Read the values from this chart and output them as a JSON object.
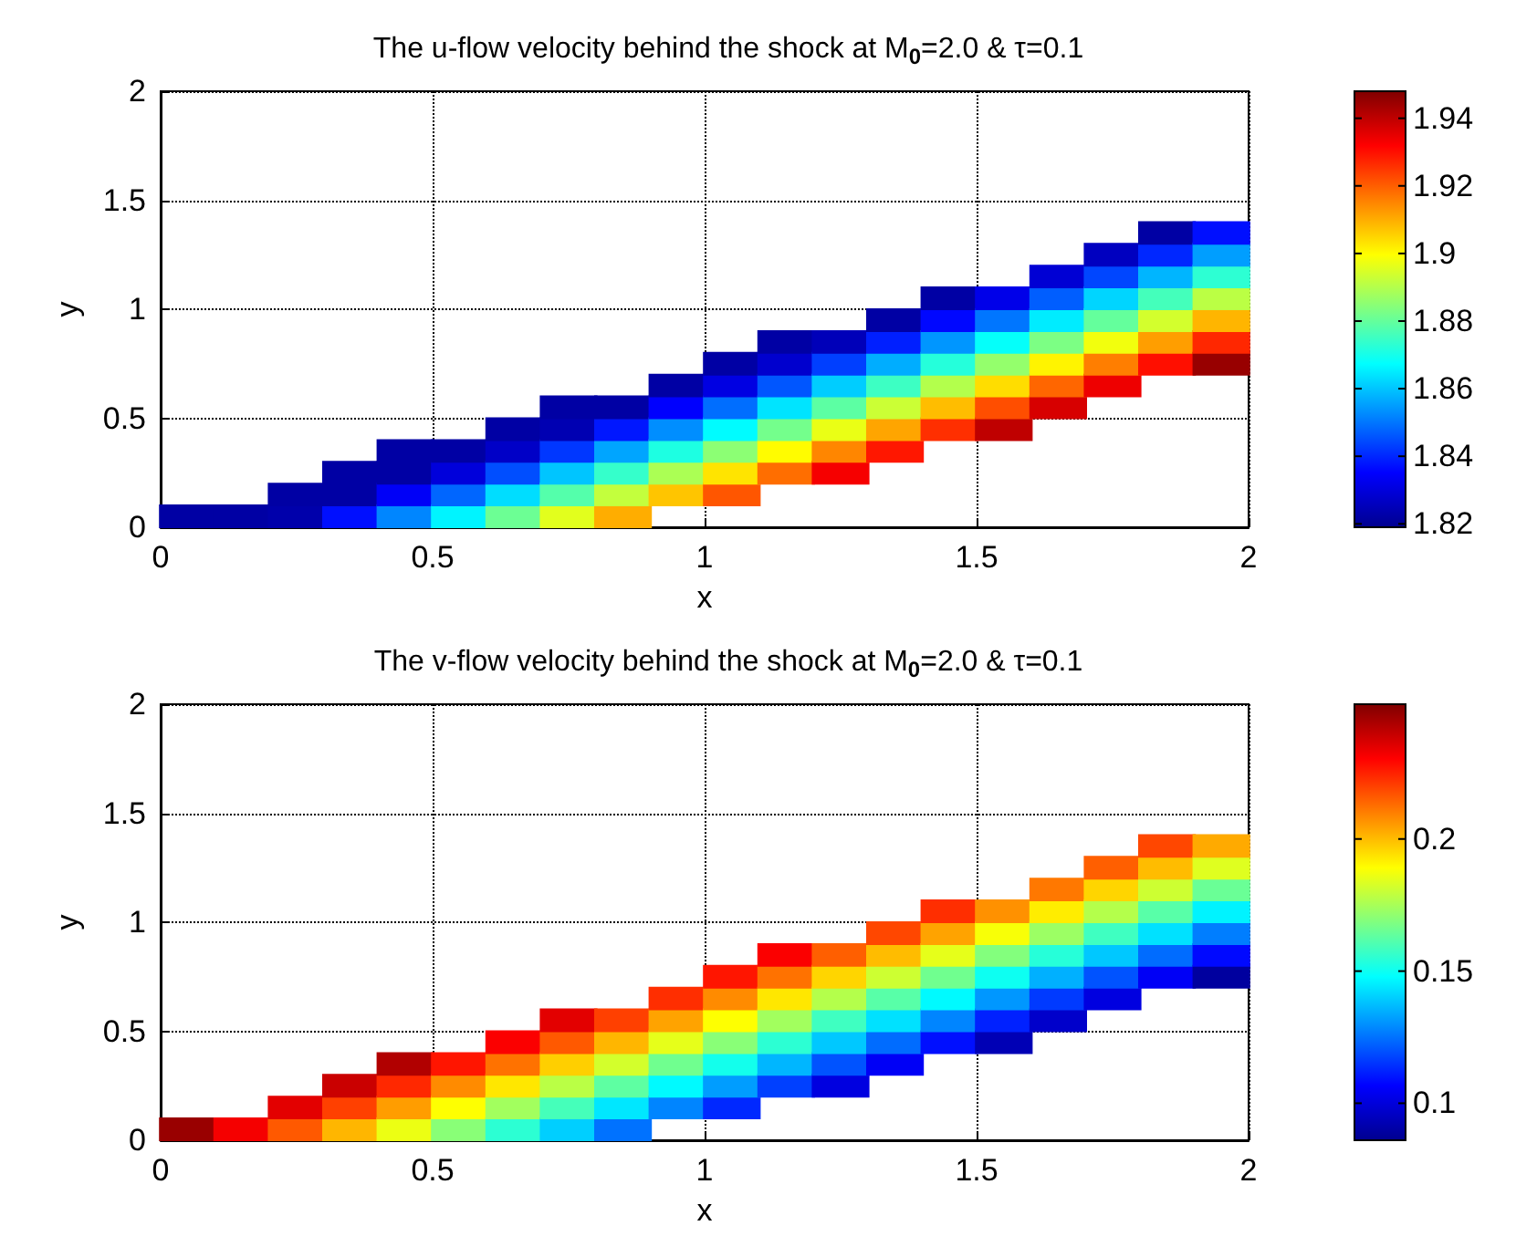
{
  "chart_data": [
    {
      "type": "scatter",
      "title": "The u-flow velocity behind the shock at M$_{0}$=2.0 & τ=0.1",
      "xlabel": "x",
      "ylabel": "y",
      "xlim": [
        0,
        2
      ],
      "ylim": [
        0,
        2
      ],
      "xticks": [
        0,
        0.5,
        1,
        1.5,
        2
      ],
      "yticks": [
        0,
        0.5,
        1,
        1.5,
        2
      ],
      "grid": true,
      "marker": "square",
      "clim": [
        1.819,
        1.948
      ],
      "cticks": [
        1.82,
        1.84,
        1.86,
        1.88,
        1.9,
        1.92,
        1.94
      ],
      "x": [
        0.05,
        0.15,
        0.25,
        0.25,
        0.35,
        0.35,
        0.35,
        0.45,
        0.45,
        0.45,
        0.45,
        0.55,
        0.55,
        0.55,
        0.55,
        0.65,
        0.65,
        0.65,
        0.65,
        0.65,
        0.75,
        0.75,
        0.75,
        0.75,
        0.75,
        0.75,
        0.85,
        0.85,
        0.85,
        0.85,
        0.85,
        0.85,
        0.95,
        0.95,
        0.95,
        0.95,
        0.95,
        0.95,
        1.05,
        1.05,
        1.05,
        1.05,
        1.05,
        1.05,
        1.05,
        1.15,
        1.15,
        1.15,
        1.15,
        1.15,
        1.15,
        1.15,
        1.25,
        1.25,
        1.25,
        1.25,
        1.25,
        1.25,
        1.25,
        1.35,
        1.35,
        1.35,
        1.35,
        1.35,
        1.35,
        1.35,
        1.45,
        1.45,
        1.45,
        1.45,
        1.45,
        1.45,
        1.45,
        1.55,
        1.55,
        1.55,
        1.55,
        1.55,
        1.55,
        1.55,
        1.65,
        1.65,
        1.65,
        1.65,
        1.65,
        1.65,
        1.65,
        1.75,
        1.75,
        1.75,
        1.75,
        1.75,
        1.75,
        1.75,
        1.85,
        1.85,
        1.85,
        1.85,
        1.85,
        1.85,
        1.85,
        1.95,
        1.95,
        1.95,
        1.95,
        1.95,
        1.95,
        1.95
      ],
      "values": [
        0.05,
        0.05,
        0.05,
        0.15,
        0.05,
        0.15,
        0.25,
        0.05,
        0.15,
        0.25,
        0.35,
        0.05,
        0.15,
        0.25,
        0.35,
        0.05,
        0.15,
        0.25,
        0.35,
        0.45,
        0.05,
        0.15,
        0.25,
        0.35,
        0.45,
        0.55,
        0.05,
        0.15,
        0.25,
        0.35,
        0.45,
        0.55,
        0.15,
        0.25,
        0.35,
        0.45,
        0.55,
        0.65,
        0.15,
        0.25,
        0.35,
        0.45,
        0.55,
        0.65,
        0.75,
        0.25,
        0.35,
        0.45,
        0.55,
        0.65,
        0.75,
        0.85,
        0.25,
        0.35,
        0.45,
        0.55,
        0.65,
        0.75,
        0.85,
        0.35,
        0.45,
        0.55,
        0.65,
        0.75,
        0.85,
        0.95,
        0.45,
        0.55,
        0.65,
        0.75,
        0.85,
        0.95,
        1.05,
        0.45,
        0.55,
        0.65,
        0.75,
        0.85,
        0.95,
        1.05,
        0.55,
        0.65,
        0.75,
        0.85,
        0.95,
        1.05,
        1.15,
        0.65,
        0.75,
        0.85,
        0.95,
        1.05,
        1.15,
        1.25,
        0.75,
        0.85,
        0.95,
        1.05,
        1.15,
        1.25,
        1.35,
        0.75,
        0.85,
        0.95,
        1.05,
        1.15,
        1.25,
        1.35
      ],
      "cvalues": [
        1.822,
        1.822,
        1.823,
        1.822,
        1.837,
        1.822,
        1.822,
        1.852,
        1.834,
        1.822,
        1.822,
        1.866,
        1.848,
        1.83,
        1.822,
        1.881,
        1.863,
        1.845,
        1.827,
        1.822,
        1.896,
        1.878,
        1.86,
        1.842,
        1.824,
        1.822,
        1.91,
        1.892,
        1.874,
        1.856,
        1.838,
        1.822,
        1.907,
        1.889,
        1.871,
        1.853,
        1.835,
        1.822,
        1.921,
        1.903,
        1.885,
        1.867,
        1.849,
        1.831,
        1.822,
        1.918,
        1.9,
        1.882,
        1.864,
        1.846,
        1.828,
        1.822,
        1.933,
        1.915,
        1.897,
        1.879,
        1.861,
        1.843,
        1.825,
        1.929,
        1.911,
        1.893,
        1.875,
        1.857,
        1.839,
        1.822,
        1.926,
        1.908,
        1.89,
        1.872,
        1.854,
        1.836,
        1.822,
        1.94,
        1.922,
        1.904,
        1.886,
        1.868,
        1.85,
        1.832,
        1.937,
        1.919,
        1.901,
        1.883,
        1.865,
        1.847,
        1.829,
        1.934,
        1.916,
        1.898,
        1.88,
        1.862,
        1.844,
        1.826,
        1.93,
        1.912,
        1.894,
        1.876,
        1.858,
        1.84,
        1.822,
        1.945,
        1.927,
        1.909,
        1.891,
        1.873,
        1.855,
        1.837
      ]
    },
    {
      "type": "scatter",
      "title": "The v-flow velocity behind the shock at M$_{0}$=2.0 & τ=0.1",
      "xlabel": "x",
      "ylabel": "y",
      "xlim": [
        0,
        2
      ],
      "ylim": [
        0,
        2
      ],
      "xticks": [
        0,
        0.5,
        1,
        1.5,
        2
      ],
      "yticks": [
        0,
        0.5,
        1,
        1.5,
        2
      ],
      "grid": true,
      "marker": "square",
      "clim": [
        0.086,
        0.251
      ],
      "cticks": [
        0.1,
        0.15,
        0.2
      ],
      "x": [
        0.05,
        0.15,
        0.25,
        0.25,
        0.35,
        0.35,
        0.35,
        0.45,
        0.45,
        0.45,
        0.45,
        0.55,
        0.55,
        0.55,
        0.55,
        0.65,
        0.65,
        0.65,
        0.65,
        0.65,
        0.75,
        0.75,
        0.75,
        0.75,
        0.75,
        0.75,
        0.85,
        0.85,
        0.85,
        0.85,
        0.85,
        0.85,
        0.95,
        0.95,
        0.95,
        0.95,
        0.95,
        0.95,
        1.05,
        1.05,
        1.05,
        1.05,
        1.05,
        1.05,
        1.05,
        1.15,
        1.15,
        1.15,
        1.15,
        1.15,
        1.15,
        1.15,
        1.25,
        1.25,
        1.25,
        1.25,
        1.25,
        1.25,
        1.25,
        1.35,
        1.35,
        1.35,
        1.35,
        1.35,
        1.35,
        1.35,
        1.45,
        1.45,
        1.45,
        1.45,
        1.45,
        1.45,
        1.45,
        1.55,
        1.55,
        1.55,
        1.55,
        1.55,
        1.55,
        1.55,
        1.65,
        1.65,
        1.65,
        1.65,
        1.65,
        1.65,
        1.65,
        1.75,
        1.75,
        1.75,
        1.75,
        1.75,
        1.75,
        1.75,
        1.85,
        1.85,
        1.85,
        1.85,
        1.85,
        1.85,
        1.85,
        1.95,
        1.95,
        1.95,
        1.95,
        1.95,
        1.95,
        1.95
      ],
      "values": [
        0.05,
        0.05,
        0.05,
        0.15,
        0.05,
        0.15,
        0.25,
        0.05,
        0.15,
        0.25,
        0.35,
        0.05,
        0.15,
        0.25,
        0.35,
        0.05,
        0.15,
        0.25,
        0.35,
        0.45,
        0.05,
        0.15,
        0.25,
        0.35,
        0.45,
        0.55,
        0.05,
        0.15,
        0.25,
        0.35,
        0.45,
        0.55,
        0.15,
        0.25,
        0.35,
        0.45,
        0.55,
        0.65,
        0.15,
        0.25,
        0.35,
        0.45,
        0.55,
        0.65,
        0.75,
        0.25,
        0.35,
        0.45,
        0.55,
        0.65,
        0.75,
        0.85,
        0.25,
        0.35,
        0.45,
        0.55,
        0.65,
        0.75,
        0.85,
        0.35,
        0.45,
        0.55,
        0.65,
        0.75,
        0.85,
        0.95,
        0.45,
        0.55,
        0.65,
        0.75,
        0.85,
        0.95,
        1.05,
        0.45,
        0.55,
        0.65,
        0.75,
        0.85,
        0.95,
        1.05,
        0.55,
        0.65,
        0.75,
        0.85,
        0.95,
        1.05,
        1.15,
        0.65,
        0.75,
        0.85,
        0.95,
        1.05,
        1.15,
        1.25,
        0.75,
        0.85,
        0.95,
        1.05,
        1.15,
        1.25,
        1.35,
        0.75,
        0.85,
        0.95,
        1.05,
        1.15,
        1.25,
        1.35
      ],
      "cvalues": [
        0.247,
        0.232,
        0.216,
        0.235,
        0.201,
        0.22,
        0.239,
        0.186,
        0.205,
        0.224,
        0.243,
        0.17,
        0.189,
        0.208,
        0.227,
        0.155,
        0.174,
        0.193,
        0.212,
        0.231,
        0.14,
        0.159,
        0.178,
        0.197,
        0.216,
        0.235,
        0.125,
        0.144,
        0.163,
        0.182,
        0.201,
        0.22,
        0.128,
        0.147,
        0.166,
        0.185,
        0.204,
        0.223,
        0.113,
        0.132,
        0.151,
        0.17,
        0.189,
        0.208,
        0.227,
        0.117,
        0.136,
        0.155,
        0.174,
        0.193,
        0.212,
        0.231,
        0.101,
        0.12,
        0.139,
        0.158,
        0.177,
        0.196,
        0.215,
        0.105,
        0.124,
        0.143,
        0.162,
        0.181,
        0.2,
        0.219,
        0.109,
        0.128,
        0.147,
        0.166,
        0.185,
        0.204,
        0.223,
        0.093,
        0.112,
        0.131,
        0.15,
        0.169,
        0.188,
        0.207,
        0.097,
        0.116,
        0.135,
        0.154,
        0.173,
        0.192,
        0.211,
        0.101,
        0.12,
        0.139,
        0.158,
        0.177,
        0.196,
        0.215,
        0.105,
        0.124,
        0.143,
        0.162,
        0.181,
        0.2,
        0.219,
        0.089,
        0.108,
        0.127,
        0.146,
        0.165,
        0.184,
        0.203
      ]
    }
  ]
}
